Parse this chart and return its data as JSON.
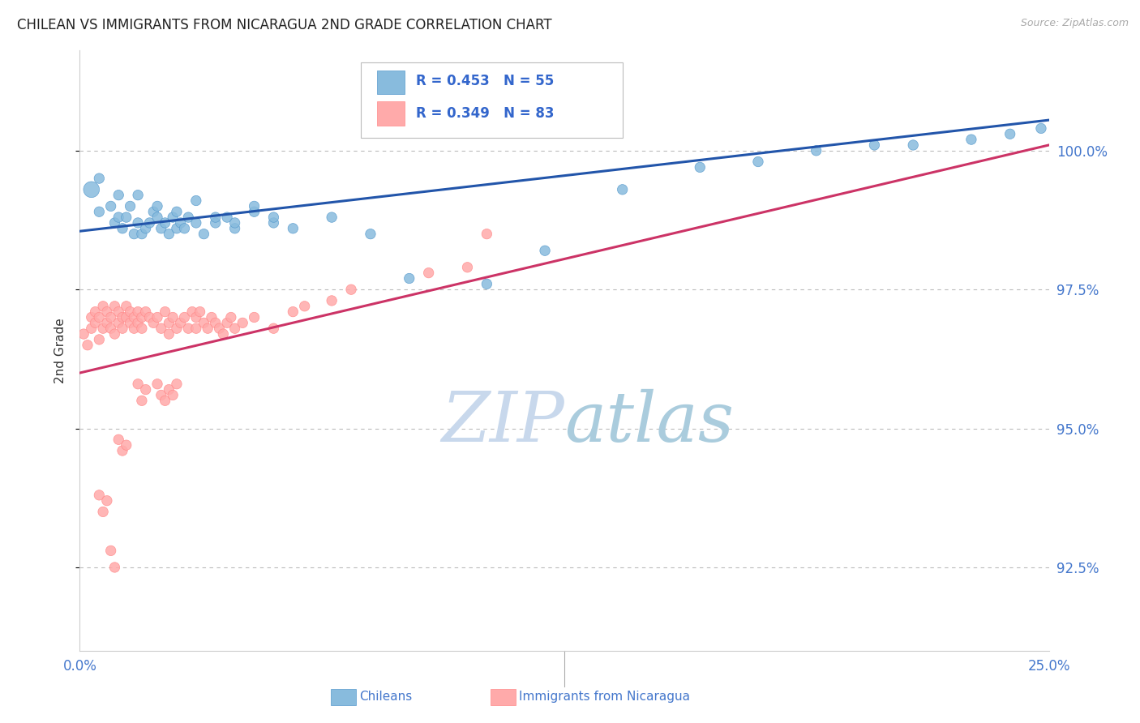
{
  "title": "CHILEAN VS IMMIGRANTS FROM NICARAGUA 2ND GRADE CORRELATION CHART",
  "source_text": "Source: ZipAtlas.com",
  "ylabel": "2nd Grade",
  "xlim": [
    0.0,
    25.0
  ],
  "ylim": [
    91.0,
    101.8
  ],
  "yticks": [
    92.5,
    95.0,
    97.5,
    100.0
  ],
  "xticklabels": [
    "0.0%",
    "25.0%"
  ],
  "yticklabels": [
    "92.5%",
    "95.0%",
    "97.5%",
    "100.0%"
  ],
  "chilean_color": "#88BBDD",
  "nicaragua_color": "#FFAAAA",
  "chilean_edge_color": "#5599CC",
  "nicaragua_edge_color": "#FF8888",
  "chilean_line_color": "#2255AA",
  "nicaragua_line_color": "#CC3366",
  "R_chilean": 0.453,
  "N_chilean": 55,
  "R_nicaragua": 0.349,
  "N_nicaragua": 83,
  "background_color": "#FFFFFF",
  "grid_color": "#BBBBBB",
  "title_color": "#222222",
  "axis_label_color": "#4477CC",
  "watermark_color": "#C8DCF0",
  "legend_text_color": "#3366CC",
  "chilean_line": {
    "x0": 0.0,
    "y0": 98.55,
    "x1": 25.0,
    "y1": 100.55
  },
  "nicaragua_line": {
    "x0": 0.0,
    "y0": 96.0,
    "x1": 25.0,
    "y1": 100.1
  },
  "chilean_x": [
    0.3,
    0.5,
    0.5,
    0.8,
    0.9,
    1.0,
    1.0,
    1.1,
    1.2,
    1.3,
    1.4,
    1.5,
    1.6,
    1.7,
    1.8,
    1.9,
    2.0,
    2.1,
    2.2,
    2.3,
    2.4,
    2.5,
    2.6,
    2.7,
    2.8,
    3.0,
    3.2,
    3.5,
    3.8,
    4.0,
    4.5,
    5.0,
    6.5,
    7.5,
    8.5,
    10.5,
    12.0,
    14.0,
    16.0,
    17.5,
    19.0,
    20.5,
    21.5,
    23.0,
    24.0,
    24.8,
    1.5,
    2.0,
    2.5,
    3.0,
    3.5,
    4.0,
    4.5,
    5.0,
    5.5
  ],
  "chilean_y": [
    99.3,
    99.5,
    98.9,
    99.0,
    98.7,
    98.8,
    99.2,
    98.6,
    98.8,
    99.0,
    98.5,
    98.7,
    98.5,
    98.6,
    98.7,
    98.9,
    98.8,
    98.6,
    98.7,
    98.5,
    98.8,
    98.6,
    98.7,
    98.6,
    98.8,
    98.7,
    98.5,
    98.7,
    98.8,
    98.6,
    98.9,
    98.7,
    98.8,
    98.5,
    97.7,
    97.6,
    98.2,
    99.3,
    99.7,
    99.8,
    100.0,
    100.1,
    100.1,
    100.2,
    100.3,
    100.4,
    99.2,
    99.0,
    98.9,
    99.1,
    98.8,
    98.7,
    99.0,
    98.8,
    98.6
  ],
  "chilean_sizes": [
    200,
    80,
    80,
    80,
    80,
    80,
    80,
    80,
    80,
    80,
    80,
    80,
    80,
    80,
    80,
    80,
    80,
    80,
    80,
    80,
    80,
    80,
    80,
    80,
    80,
    80,
    80,
    80,
    80,
    80,
    80,
    80,
    80,
    80,
    80,
    80,
    80,
    80,
    80,
    80,
    80,
    80,
    80,
    80,
    80,
    80,
    80,
    80,
    80,
    80,
    80,
    80,
    80,
    80,
    80
  ],
  "nicaragua_x": [
    0.1,
    0.2,
    0.3,
    0.3,
    0.4,
    0.4,
    0.5,
    0.5,
    0.6,
    0.6,
    0.7,
    0.7,
    0.8,
    0.8,
    0.9,
    0.9,
    1.0,
    1.0,
    1.1,
    1.1,
    1.2,
    1.2,
    1.3,
    1.3,
    1.4,
    1.4,
    1.5,
    1.5,
    1.6,
    1.6,
    1.7,
    1.8,
    1.9,
    2.0,
    2.1,
    2.2,
    2.3,
    2.3,
    2.4,
    2.5,
    2.6,
    2.7,
    2.8,
    2.9,
    3.0,
    3.0,
    3.1,
    3.2,
    3.3,
    3.4,
    3.5,
    3.6,
    3.7,
    3.8,
    3.9,
    4.0,
    4.2,
    4.5,
    5.0,
    5.5,
    5.8,
    6.5,
    7.0,
    9.0,
    10.0,
    10.5,
    1.5,
    1.6,
    1.7,
    2.0,
    2.1,
    2.2,
    2.3,
    2.4,
    2.5,
    1.0,
    1.1,
    1.2,
    0.5,
    0.6,
    0.7,
    0.8,
    0.9
  ],
  "nicaragua_y": [
    96.7,
    96.5,
    96.8,
    97.0,
    96.9,
    97.1,
    96.6,
    97.0,
    97.2,
    96.8,
    97.1,
    96.9,
    97.0,
    96.8,
    97.2,
    96.7,
    97.1,
    96.9,
    97.0,
    96.8,
    97.2,
    97.0,
    97.1,
    96.9,
    97.0,
    96.8,
    97.1,
    96.9,
    97.0,
    96.8,
    97.1,
    97.0,
    96.9,
    97.0,
    96.8,
    97.1,
    96.9,
    96.7,
    97.0,
    96.8,
    96.9,
    97.0,
    96.8,
    97.1,
    97.0,
    96.8,
    97.1,
    96.9,
    96.8,
    97.0,
    96.9,
    96.8,
    96.7,
    96.9,
    97.0,
    96.8,
    96.9,
    97.0,
    96.8,
    97.1,
    97.2,
    97.3,
    97.5,
    97.8,
    97.9,
    98.5,
    95.8,
    95.5,
    95.7,
    95.8,
    95.6,
    95.5,
    95.7,
    95.6,
    95.8,
    94.8,
    94.6,
    94.7,
    93.8,
    93.5,
    93.7,
    92.8,
    92.5
  ],
  "nicaragua_sizes": [
    80,
    80,
    80,
    80,
    80,
    80,
    80,
    80,
    80,
    80,
    80,
    80,
    80,
    80,
    80,
    80,
    80,
    80,
    80,
    80,
    80,
    80,
    80,
    80,
    80,
    80,
    80,
    80,
    80,
    80,
    80,
    80,
    80,
    80,
    80,
    80,
    80,
    80,
    80,
    80,
    80,
    80,
    80,
    80,
    80,
    80,
    80,
    80,
    80,
    80,
    80,
    80,
    80,
    80,
    80,
    80,
    80,
    80,
    80,
    80,
    80,
    80,
    80,
    80,
    80,
    80,
    80,
    80,
    80,
    80,
    80,
    80,
    80,
    80,
    80,
    80,
    80,
    80,
    80,
    80,
    80,
    80,
    80
  ]
}
